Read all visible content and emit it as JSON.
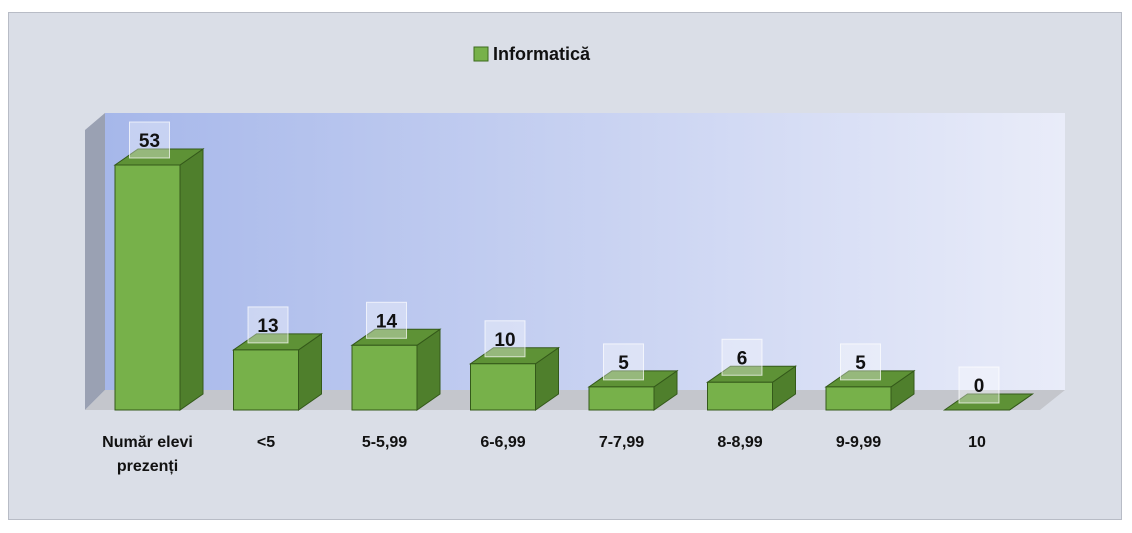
{
  "chart_data": {
    "type": "bar3d",
    "categories": [
      "Număr elevi prezenți",
      "<5",
      "5-5,99",
      "6-6,99",
      "7-7,99",
      "8-8,99",
      "9-9,99",
      "10"
    ],
    "series": [
      {
        "name": "Informatică",
        "color": "#77b14a",
        "values": [
          53,
          13,
          14,
          10,
          5,
          6,
          5,
          0
        ]
      }
    ],
    "legend": "top"
  }
}
